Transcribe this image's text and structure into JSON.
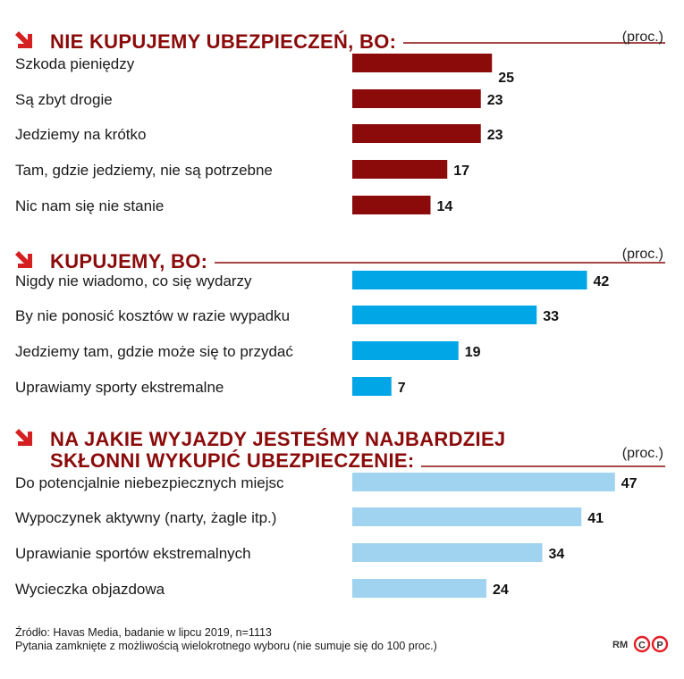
{
  "colors": {
    "title": "#8b0a0a",
    "rule": "#8b0a0a",
    "arrow": "#d42020",
    "logo": "#e41e26"
  },
  "chart_data": [
    {
      "type": "bar",
      "title": "NIE KUPUJEMY UBEZPIECZEŃ, BO:",
      "unit": "(proc.)",
      "color": "#8b0a0a",
      "categories": [
        "Szkoda pieniędzy",
        "Są zbyt drogie",
        "Jedziemy na krótko",
        "Tam, gdzie jedziemy, nie są potrzebne",
        "Nic nam się nie stanie"
      ],
      "values": [
        25,
        23,
        23,
        17,
        14
      ]
    },
    {
      "type": "bar",
      "title": "KUPUJEMY, BO:",
      "unit": "(proc.)",
      "color": "#00a6e6",
      "categories": [
        "Nigdy nie wiadomo, co się wydarzy",
        "By nie ponosić kosztów w razie wypadku",
        "Jedziemy tam, gdzie może się to przydać",
        "Uprawiamy sporty ekstremalne"
      ],
      "values": [
        42,
        33,
        19,
        7
      ]
    },
    {
      "type": "bar",
      "title_lines": [
        "NA JAKIE WYJAZDY JESTEŚMY NAJBARDZIEJ",
        "SKŁONNI WYKUPIĆ UBEZPIECZENIE:"
      ],
      "unit": "(proc.)",
      "color": "#9fd3f0",
      "categories": [
        "Do potencjalnie niebezpiecznych miejsc",
        "Wypoczynek aktywny (narty, żagle itp.)",
        "Uprawianie sportów ekstremalnych",
        "Wycieczka objazdowa"
      ],
      "values": [
        47,
        41,
        34,
        24
      ]
    }
  ],
  "footer": {
    "source": "Źródło: Havas Media, badanie w lipcu 2019, n=1113",
    "note": "Pytania zamknięte z możliwością wielokrotnego wyboru (nie sumuje się do 100 proc.)",
    "initials": "RM",
    "logo_letters": [
      "C",
      "P"
    ]
  }
}
